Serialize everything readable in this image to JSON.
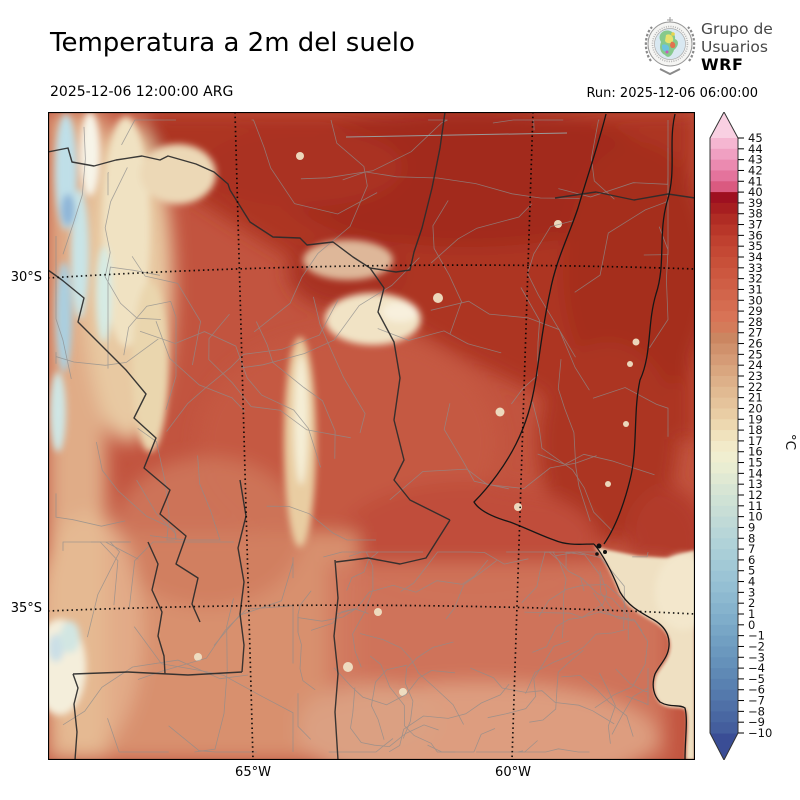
{
  "header": {
    "title": "Temperatura a 2m del suelo",
    "valid_time": "2025-12-06 12:00:00 ARG",
    "run_label": "Run: 2025-12-06 06:00:00"
  },
  "logo": {
    "line1": "Grupo de",
    "line2": "Usuarios",
    "line3": "WRF"
  },
  "map": {
    "lat_labels": [
      {
        "text": "30°S"
      },
      {
        "text": "35°S"
      }
    ],
    "lon_labels": [
      {
        "text": "65°W"
      },
      {
        "text": "60°W"
      }
    ]
  },
  "colorbar": {
    "unit": "°C",
    "max": 45,
    "min": -10,
    "ticks": [
      "45",
      "44",
      "43",
      "42",
      "41",
      "40",
      "39",
      "38",
      "37",
      "36",
      "35",
      "34",
      "33",
      "32",
      "31",
      "30",
      "29",
      "28",
      "27",
      "26",
      "25",
      "24",
      "23",
      "22",
      "21",
      "20",
      "19",
      "18",
      "17",
      "16",
      "15",
      "14",
      "13",
      "12",
      "11",
      "10",
      "9",
      "8",
      "7",
      "6",
      "5",
      "4",
      "3",
      "2",
      "1",
      "0",
      "−1",
      "−2",
      "−3",
      "−4",
      "−5",
      "−6",
      "−7",
      "−8",
      "−9",
      "−10"
    ],
    "cell_colors": [
      "#f5b6d1",
      "#f0a0c2",
      "#eb8ab0",
      "#e4739c",
      "#da5a80",
      "#9e1020",
      "#a71e20",
      "#b02c24",
      "#b83629",
      "#bf402f",
      "#c44834",
      "#c85039",
      "#cc573f",
      "#cf5e45",
      "#d2654b",
      "#d56c50",
      "#d87356",
      "#d47b5a",
      "#cb8661",
      "#d0916c",
      "#d59b76",
      "#d9a67f",
      "#ddb089",
      "#e1ba92",
      "#e5c39b",
      "#e9cda4",
      "#edd8b0",
      "#f0e2bd",
      "#f2eac9",
      "#f0eed0",
      "#e9edd2",
      "#e0e9d3",
      "#d7e5d4",
      "#cfe2d5",
      "#c8ded6",
      "#c0dad7",
      "#b8d6d8",
      "#b0d2d8",
      "#a9ced7",
      "#a2c9d6",
      "#9bc4d5",
      "#94bfd3",
      "#8db9d0",
      "#86b3cd",
      "#7fadca",
      "#78a6c6",
      "#719fc2",
      "#6b98be",
      "#6591ba",
      "#5f89b5",
      "#5981b1",
      "#5479ac",
      "#4f70a7",
      "#4967a2",
      "#445e9d"
    ],
    "arrow_top_color": "#f9d0e2",
    "arrow_bottom_color": "#3a4d95",
    "outline_color": "#333333"
  }
}
